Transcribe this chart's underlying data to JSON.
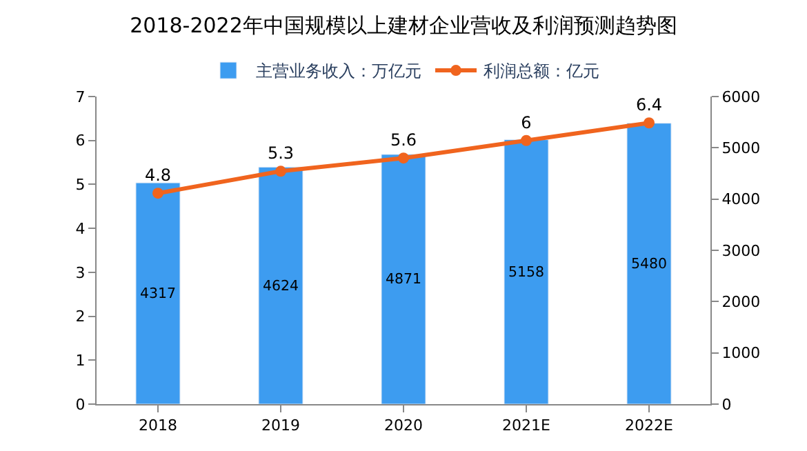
{
  "chart_data": {
    "type": "bar",
    "title": "2018-2022年中国规模以上建材企业营收及利润预测趋势图",
    "categories": [
      "2018",
      "2019",
      "2020",
      "2021E",
      "2022E"
    ],
    "series": [
      {
        "name": "主营业务收入：万亿元",
        "axis": "y2",
        "color": "#3d9cf0",
        "values": [
          4317,
          4624,
          4871,
          5158,
          5480
        ]
      },
      {
        "name": "利润总额：亿元",
        "type": "line",
        "axis": "y",
        "color": "#f0641e",
        "values": [
          4.8,
          5.3,
          5.6,
          6,
          6.4
        ]
      }
    ],
    "ylim": [
      0,
      7
    ],
    "yticks": [
      0,
      1,
      2,
      3,
      4,
      5,
      6,
      7
    ],
    "y2lim": [
      0,
      6000
    ],
    "y2ticks": [
      0,
      1000,
      2000,
      3000,
      4000,
      5000,
      6000
    ],
    "data_labels": true,
    "legend": "top",
    "marker": "circle",
    "line_style": "solid"
  }
}
